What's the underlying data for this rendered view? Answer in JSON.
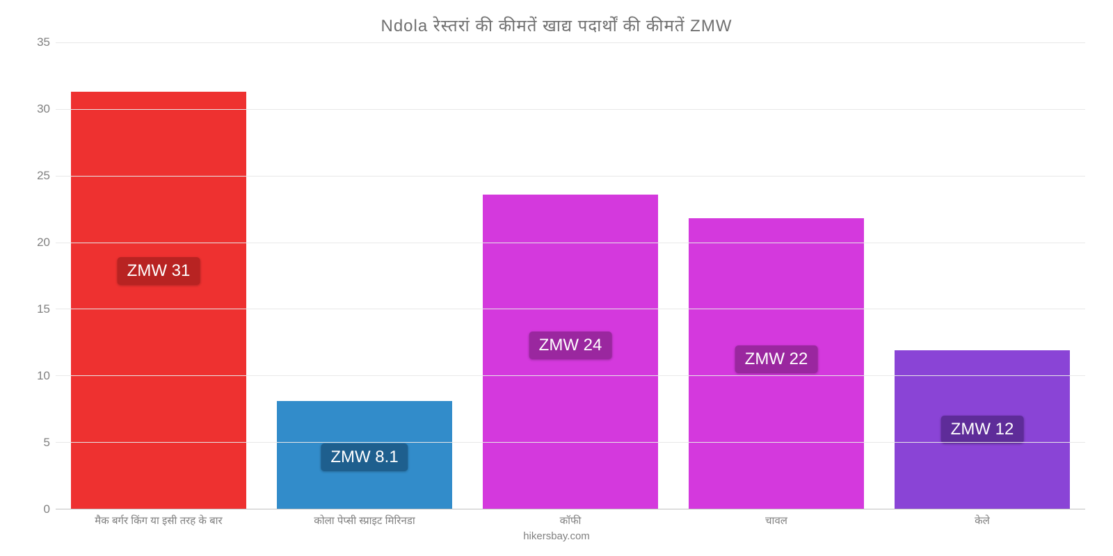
{
  "chart": {
    "type": "bar",
    "title": "Ndola रेस्तरां   की   कीमतें   खाद्य   पदार्थों   की   कीमतें   ZMW",
    "title_fontsize": 24,
    "title_color": "#707070",
    "attribution": "hikersbay.com",
    "background_color": "#ffffff",
    "grid_color": "#e8e8e8",
    "axis_line_color": "#c0c0c0",
    "tick_color": "#808080",
    "tick_fontsize": 17,
    "x_tick_fontsize": 15,
    "label_fontsize": 24,
    "ylim": [
      0,
      35
    ],
    "yticks": [
      0,
      5,
      10,
      15,
      20,
      25,
      30,
      35
    ],
    "bar_width_pct": 85,
    "bars": [
      {
        "category": "मैक बर्गर किंग या इसी तरह के बार",
        "value": 31.3,
        "label": "ZMW 31",
        "bar_color": "#ee3130",
        "label_bg": "#b82322",
        "label_text_color": "#ffffff",
        "label_y_pct": 46
      },
      {
        "category": "कोला पेप्सी स्प्राइट मिरिनडा",
        "value": 8.1,
        "label": "ZMW 8.1",
        "bar_color": "#328cca",
        "label_bg": "#1e5f8e",
        "label_text_color": "#ffffff",
        "label_y_pct": 86
      },
      {
        "category": "कॉफी",
        "value": 23.6,
        "label": "ZMW 24",
        "bar_color": "#d439dd",
        "label_bg": "#9a279f",
        "label_text_color": "#ffffff",
        "label_y_pct": 62
      },
      {
        "category": "चावल",
        "value": 21.8,
        "label": "ZMW 22",
        "bar_color": "#d439dd",
        "label_bg": "#9a279f",
        "label_text_color": "#ffffff",
        "label_y_pct": 65
      },
      {
        "category": "केले",
        "value": 11.9,
        "label": "ZMW 12",
        "bar_color": "#8a44d6",
        "label_bg": "#5e2c99",
        "label_text_color": "#ffffff",
        "label_y_pct": 80
      }
    ]
  }
}
